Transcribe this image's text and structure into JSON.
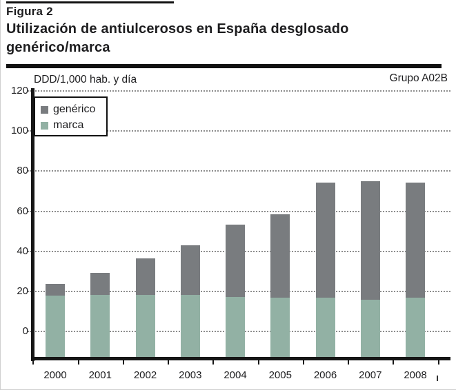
{
  "figure": {
    "label": "Figura 2",
    "title_line1": "Utilización de antiulcerosos en España desglosado",
    "title_line2": "genérico/marca"
  },
  "chart": {
    "unit_label": "DDD/1,000 hab. y día",
    "group_label": "Grupo A02B",
    "legend": [
      {
        "key": "generico",
        "label": "genérico",
        "color": "#797c7f"
      },
      {
        "key": "marca",
        "label": "marca",
        "color": "#92b1a4"
      }
    ]
  },
  "chart_data": {
    "type": "bar",
    "stacked": true,
    "title": "Utilización de antiulcerosos en España desglosado genérico/marca",
    "ylabel": "DDD/1,000 hab. y día",
    "annotation": "Grupo A02B",
    "categories": [
      "2000",
      "2001",
      "2002",
      "2003",
      "2004",
      "2005",
      "2006",
      "2007",
      "2008"
    ],
    "series": [
      {
        "name": "marca",
        "stack_position": "bottom",
        "color": "#92b1a4",
        "values": [
          17.5,
          18,
          18,
          18,
          17,
          16.5,
          16.5,
          15.5,
          16.5
        ]
      },
      {
        "name": "genérico",
        "stack_position": "top",
        "color": "#797c7f",
        "values": [
          6,
          11,
          18,
          24.5,
          36,
          41.5,
          57.5,
          59,
          57.5
        ]
      }
    ],
    "totals": [
      23.5,
      29,
      36,
      42.5,
      53,
      58,
      74,
      74.5,
      74
    ],
    "ylim": [
      0,
      120
    ],
    "yticks": [
      0,
      20,
      40,
      60,
      80,
      100,
      120
    ],
    "grid": "horizontal dotted",
    "legend_position": "top-left inside plot"
  }
}
